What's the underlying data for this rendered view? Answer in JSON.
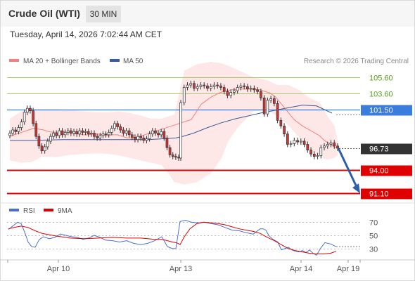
{
  "header": {
    "instrument": "Crude Oil (WTI)",
    "timeframe": "30 MIN",
    "datetime": "Tuesday, April 14, 2026 7:02:44 AM CET"
  },
  "colors": {
    "ma20": "#f08080",
    "ma50": "#3a5a9b",
    "bollinger_fill": "#fde3e3",
    "support": "#e00000",
    "resistance": "#a6c96a",
    "pivot": "#3b7ddd",
    "last_price": "#333333",
    "arrow": "#2d5fa6",
    "rsi": "#4a6fd0",
    "rsi_ma": "#e00000",
    "candle_up": "#ffffff",
    "candle_down": "#d33333",
    "candle_wick": "#333333"
  },
  "chart_data": [
    {
      "type": "line",
      "panel": "price",
      "legend": [
        "MA 20 + Bollinger Bands",
        "MA 50"
      ],
      "legend_position": "top-left",
      "copyright": "Research © 2026 Trading Central",
      "x_ticks": [
        "Apr 10",
        "Apr 13",
        "Apr 14",
        "Apr 19"
      ],
      "ylim": [
        89.8,
        107.5
      ],
      "levels": [
        {
          "value": 105.6,
          "label": "105.60",
          "kind": "resistance"
        },
        {
          "value": 103.6,
          "label": "103.60",
          "kind": "resistance"
        },
        {
          "value": 101.5,
          "label": "101.50",
          "kind": "pivot"
        },
        {
          "value": 96.73,
          "label": "96.73",
          "kind": "last"
        },
        {
          "value": 94.0,
          "label": "94.00",
          "kind": "support"
        },
        {
          "value": 91.1,
          "label": "91.10",
          "kind": "support"
        }
      ],
      "candles_close": [
        98.6,
        99.0,
        98.8,
        99.3,
        100.0,
        101.2,
        101.7,
        101.4,
        99.8,
        98.2,
        97.0,
        96.4,
        96.9,
        97.6,
        98.2,
        98.6,
        98.3,
        98.9,
        98.4,
        98.7,
        98.9,
        98.6,
        98.8,
        98.5,
        98.9,
        98.7,
        98.8,
        98.5,
        98.6,
        98.2,
        98.0,
        98.3,
        98.5,
        98.4,
        98.7,
        99.2,
        99.8,
        99.4,
        99.0,
        98.6,
        98.9,
        98.4,
        98.1,
        97.8,
        98.2,
        98.0,
        97.7,
        97.9,
        98.5,
        98.9,
        98.6,
        98.4,
        98.8,
        98.0,
        96.8,
        95.9,
        95.7,
        95.6,
        95.5,
        102.4,
        104.3,
        104.6,
        104.8,
        104.2,
        104.4,
        104.6,
        104.5,
        104.2,
        104.4,
        104.6,
        104.5,
        104.3,
        103.8,
        103.3,
        103.7,
        103.9,
        104.3,
        104.5,
        104.4,
        104.1,
        104.2,
        104.0,
        103.8,
        103.0,
        101.0,
        102.7,
        102.9,
        102.3,
        100.2,
        99.5,
        98.5,
        97.2,
        97.3,
        97.7,
        97.5,
        97.6,
        97.2,
        96.5,
        96.0,
        95.7,
        95.8,
        96.8,
        97.0,
        97.2,
        97.4,
        97.0,
        96.73
      ],
      "ma20": [
        98.2,
        98.4,
        98.6,
        98.8,
        99.0,
        99.2,
        99.1,
        99.0,
        98.8,
        98.7,
        98.7,
        98.8,
        98.7,
        98.6,
        98.5,
        98.4,
        98.4,
        98.5,
        98.5,
        98.4,
        98.3,
        98.4,
        98.4,
        98.2,
        98.0,
        98.0,
        98.1,
        100.3,
        102.2,
        103.1,
        103.7,
        104.0,
        104.1,
        104.1,
        104.0,
        103.6,
        103.1,
        101.6,
        100.3,
        99.5,
        98.9,
        98.3,
        97.7,
        97.3,
        96.9,
        96.7
      ],
      "ma20_x": [
        14,
        20,
        27,
        34,
        41,
        48,
        55,
        62,
        69,
        76,
        83,
        90,
        97,
        104,
        111,
        118,
        125,
        132,
        139,
        146,
        153,
        160,
        167,
        174,
        181,
        188,
        195,
        272,
        286,
        300,
        314,
        328,
        342,
        356,
        370,
        384,
        392,
        406,
        418,
        430,
        442,
        454,
        461,
        468,
        475,
        482
      ],
      "ma50": [
        97.7,
        97.7,
        97.8,
        97.8,
        97.8,
        97.8,
        97.9,
        98.0,
        98.2,
        98.6,
        99.3,
        99.9,
        100.4,
        100.8,
        101.1,
        101.3,
        101.6,
        102.1,
        102.0,
        101.1
      ],
      "ma50_x": [
        14,
        50,
        90,
        130,
        170,
        210,
        230,
        250,
        260,
        275,
        295,
        315,
        335,
        355,
        370,
        382,
        400,
        430,
        450,
        472
      ],
      "bollinger_upper": [
        100.4,
        101.3,
        101.6,
        101.6,
        101.6,
        101.5,
        101.3,
        101.2,
        101.2,
        101.3,
        101.1,
        100.8,
        100.4,
        100.4,
        100.7,
        100.9,
        106.4,
        107.2,
        107.5,
        107.3,
        107.0,
        106.4,
        105.6,
        105.2,
        104.6,
        104.6,
        104.0,
        103.0,
        102.4,
        100.8,
        99.6,
        97.8
      ],
      "bollinger_upper_x": [
        14,
        30,
        45,
        60,
        80,
        100,
        120,
        140,
        155,
        170,
        185,
        200,
        215,
        230,
        240,
        248,
        262,
        280,
        300,
        315,
        325,
        340,
        360,
        380,
        395,
        410,
        425,
        440,
        455,
        465,
        475,
        480
      ],
      "bollinger_lower": [
        95.2,
        94.9,
        95.0,
        95.7,
        95.6,
        95.9,
        96.0,
        96.1,
        96.0,
        95.8,
        95.5,
        95.2,
        94.9,
        94.6,
        93.5,
        92.5,
        92.2,
        92.5,
        93.6,
        95.5,
        97.7,
        99.5,
        101.3,
        101.5,
        100.7,
        99.6,
        98.1,
        96.5,
        95.6,
        95.3,
        95.5,
        95.8
      ],
      "bollinger_lower_x": [
        14,
        30,
        45,
        60,
        80,
        100,
        120,
        140,
        155,
        170,
        185,
        200,
        215,
        230,
        240,
        248,
        262,
        280,
        300,
        315,
        325,
        340,
        360,
        380,
        395,
        410,
        425,
        440,
        455,
        465,
        475,
        480
      ]
    },
    {
      "type": "line",
      "panel": "rsi",
      "legend": [
        "RSI",
        "9MA"
      ],
      "legend_position": "top-left",
      "y_ticks": [
        70,
        50,
        30
      ],
      "ylim": [
        15,
        82
      ],
      "rsi": [
        59,
        64,
        70,
        68,
        55,
        40,
        33,
        32,
        44,
        48,
        45,
        47,
        52,
        50,
        48,
        47,
        44,
        46,
        50,
        47,
        43,
        42,
        40,
        42,
        38,
        36,
        38,
        42,
        48,
        33,
        30,
        30,
        71,
        73,
        70,
        69,
        70,
        68,
        66,
        62,
        58,
        57,
        54,
        52,
        60,
        60,
        58,
        50,
        44,
        40,
        28,
        30,
        32,
        28,
        26,
        25,
        27,
        24,
        28,
        23,
        20,
        31,
        39,
        37,
        33
      ],
      "rsi_x": [
        12,
        18,
        25,
        30,
        35,
        40,
        45,
        50,
        56,
        62,
        70,
        78,
        86,
        94,
        102,
        110,
        118,
        126,
        134,
        142,
        150,
        160,
        170,
        180,
        190,
        200,
        210,
        220,
        230,
        238,
        245,
        250,
        256,
        264,
        272,
        282,
        290,
        300,
        310,
        320,
        330,
        340,
        350,
        360,
        370,
        374,
        378,
        382,
        388,
        395,
        400,
        405,
        410,
        415,
        420,
        425,
        430,
        435,
        440,
        445,
        450,
        456,
        462,
        470,
        478
      ],
      "rsi_ma": [
        60,
        62,
        64,
        62,
        57,
        53,
        49,
        46,
        45,
        46,
        47,
        46,
        46,
        45,
        44,
        44,
        42,
        40,
        39,
        38,
        36,
        48,
        60,
        68,
        70,
        69,
        68,
        66,
        63,
        60,
        58,
        56,
        53,
        47,
        42,
        36,
        30,
        27,
        25,
        23,
        22,
        22,
        23,
        26
      ],
      "rsi_ma_x": [
        12,
        20,
        30,
        40,
        50,
        60,
        80,
        100,
        120,
        140,
        160,
        180,
        200,
        210,
        220,
        230,
        238,
        245,
        250,
        253,
        256,
        262,
        270,
        280,
        290,
        300,
        310,
        320,
        330,
        340,
        350,
        360,
        370,
        380,
        390,
        400,
        410,
        420,
        430,
        440,
        450,
        460,
        470,
        478
      ]
    }
  ]
}
